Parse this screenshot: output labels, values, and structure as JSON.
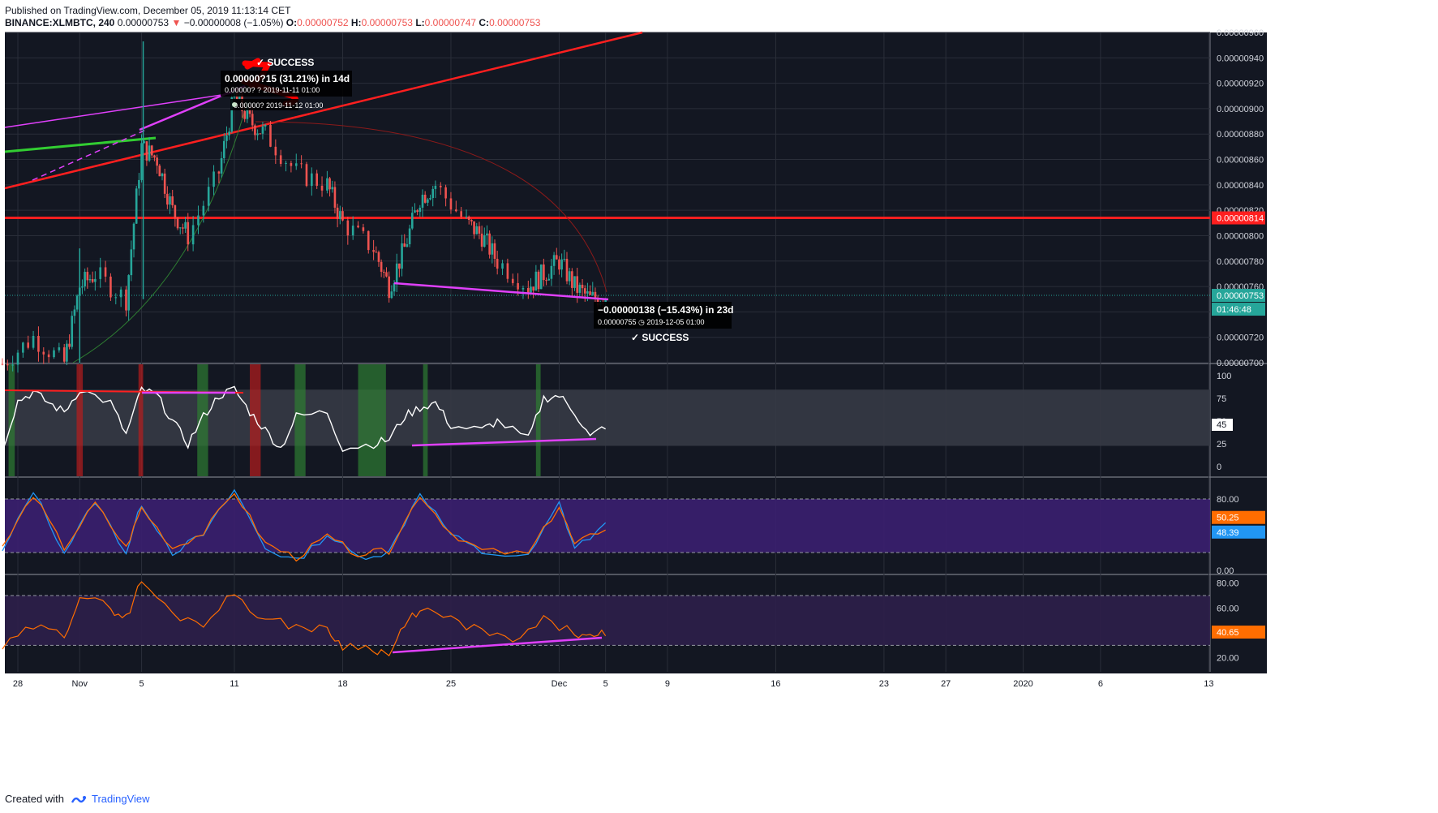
{
  "header": {
    "published": "Published on TradingView.com, December 05, 2019 11:13:14 CET"
  },
  "symbol": {
    "name": "BINANCE:XLMBTC, 240",
    "last": "0.00000753",
    "arrow": "▼",
    "change": "−0.00000008 (−1.05%)",
    "o_label": "O:",
    "o": "0.00000752",
    "h_label": "H:",
    "h": "0.00000753",
    "l_label": "L:",
    "l": "0.00000747",
    "c_label": "C:",
    "c": "0.00000753"
  },
  "footer": {
    "created": "Created with",
    "brand": "TradingView"
  },
  "colors": {
    "bg": "#131722",
    "grid": "#2a2e39",
    "up": "#26a69a",
    "down": "#ef5350",
    "resistance": "#ff1f1f",
    "magenta": "#e040fb",
    "green_line": "#32cd32",
    "rsi": "#ffffff",
    "stoch_k": "#2196f3",
    "stoch_d": "#ff6d00",
    "stoch_band": "#3b1f70",
    "osc": "#ff6d00",
    "osc_band": "#2d1f4a"
  },
  "chart_data": [
    {
      "type": "candlestick",
      "panel": "price",
      "ylim": [
        7e-06,
        9.6e-06
      ],
      "y_ticks": [
        "0.00000960",
        "0.00000940",
        "0.00000920",
        "0.00000900",
        "0.00000880",
        "0.00000860",
        "0.00000840",
        "0.00000820",
        "0.00000800",
        "0.00000780",
        "0.00000760",
        "0.00000740",
        "0.00000720",
        "0.00000700"
      ],
      "x_ticks": [
        "28",
        "Nov",
        "5",
        "11",
        "18",
        "25",
        "Dec",
        "5",
        "9",
        "16",
        "23",
        "27",
        "2020",
        "6",
        "13"
      ],
      "key_close": [
        [
          "2019-10-27",
          6.99e-06
        ],
        [
          "2019-10-29",
          7.2e-06
        ],
        [
          "2019-10-31",
          7e-06
        ],
        [
          "2019-11-01",
          7.6e-06
        ],
        [
          "2019-11-02",
          7.7e-06
        ],
        [
          "2019-11-04",
          7.5e-06
        ],
        [
          "2019-11-05",
          8.7e-06
        ],
        [
          "2019-11-06",
          8.6e-06
        ],
        [
          "2019-11-07",
          8.2e-06
        ],
        [
          "2019-11-08",
          8e-06
        ],
        [
          "2019-11-10",
          8.5e-06
        ],
        [
          "2019-11-11",
          9.1e-06
        ],
        [
          "2019-11-12",
          8.9e-06
        ],
        [
          "2019-11-13",
          8.8e-06
        ],
        [
          "2019-11-15",
          8.5e-06
        ],
        [
          "2019-11-17",
          8.4e-06
        ],
        [
          "2019-11-18",
          8.1e-06
        ],
        [
          "2019-11-20",
          7.9e-06
        ],
        [
          "2019-11-21",
          7.6e-06
        ],
        [
          "2019-11-22",
          7.9e-06
        ],
        [
          "2019-11-23",
          8.3e-06
        ],
        [
          "2019-11-24",
          8.4e-06
        ],
        [
          "2019-11-26",
          8.1e-06
        ],
        [
          "2019-11-27",
          8e-06
        ],
        [
          "2019-11-28",
          7.8e-06
        ],
        [
          "2019-11-30",
          7.6e-06
        ],
        [
          "2019-12-01",
          7.7e-06
        ],
        [
          "2019-12-02",
          7.8e-06
        ],
        [
          "2019-12-03",
          7.6e-06
        ],
        [
          "2019-12-04",
          7.5e-06
        ],
        [
          "2019-12-05",
          7.53e-06
        ]
      ],
      "last_price_label": "0.00000753",
      "countdown_label": "01:46:48",
      "resistance_label": "0.00000814",
      "resistance_level": 8.14e-06,
      "annotations": {
        "top_measure": "0.00000?15 (31.21%) in 14d",
        "top_measure_sub1": "0.00000? ? 2019-11-11 01:00",
        "top_measure_sub2": "0.00000? 2019-11-12 01:00",
        "top_success": "SUCCESS",
        "bottom_measure": "−0.00000138 (−15.43%) in 23d",
        "bottom_measure_sub": "0.00000755 ◷ 2019-12-05  01:00",
        "bottom_success": "SUCCESS",
        "check": "✓"
      }
    },
    {
      "type": "line",
      "panel": "rsi",
      "ylim": [
        0,
        100
      ],
      "y_ticks": [
        "100",
        "75",
        "50",
        "25",
        "0"
      ],
      "band": [
        25,
        80
      ],
      "last_label": "45",
      "series": [
        {
          "key_values": [
            [
              "2019-10-27",
              20
            ],
            [
              "2019-10-28",
              72
            ],
            [
              "2019-10-29",
              82
            ],
            [
              "2019-10-30",
              70
            ],
            [
              "2019-10-31",
              60
            ],
            [
              "2019-11-01",
              85
            ],
            [
              "2019-11-03",
              70
            ],
            [
              "2019-11-04",
              35
            ],
            [
              "2019-11-05",
              85
            ],
            [
              "2019-11-06",
              78
            ],
            [
              "2019-11-07",
              50
            ],
            [
              "2019-11-08",
              25
            ],
            [
              "2019-11-09",
              55
            ],
            [
              "2019-11-10",
              78
            ],
            [
              "2019-11-11",
              85
            ],
            [
              "2019-11-12",
              60
            ],
            [
              "2019-11-13",
              40
            ],
            [
              "2019-11-14",
              20
            ],
            [
              "2019-11-15",
              55
            ],
            [
              "2019-11-17",
              60
            ],
            [
              "2019-11-18",
              20
            ],
            [
              "2019-11-20",
              25
            ],
            [
              "2019-11-21",
              30
            ],
            [
              "2019-11-22",
              55
            ],
            [
              "2019-11-23",
              65
            ],
            [
              "2019-11-24",
              70
            ],
            [
              "2019-11-25",
              45
            ],
            [
              "2019-11-27",
              40
            ],
            [
              "2019-11-28",
              50
            ],
            [
              "2019-11-30",
              30
            ],
            [
              "2019-12-01",
              75
            ],
            [
              "2019-12-02",
              78
            ],
            [
              "2019-12-03",
              60
            ],
            [
              "2019-12-04",
              32
            ],
            [
              "2019-12-05",
              45
            ]
          ]
        }
      ]
    },
    {
      "type": "line",
      "panel": "stoch",
      "ylim": [
        0,
        100
      ],
      "y_ticks": [
        "80.00",
        "40.00",
        "0.00"
      ],
      "band": [
        20,
        80
      ],
      "k_label": "50.25",
      "d_label": "48.39",
      "series": [
        {
          "name": "%K",
          "key_values": [
            [
              "2019-10-27",
              20
            ],
            [
              "2019-10-29",
              90
            ],
            [
              "2019-10-31",
              20
            ],
            [
              "2019-11-02",
              78
            ],
            [
              "2019-11-04",
              20
            ],
            [
              "2019-11-05",
              75
            ],
            [
              "2019-11-07",
              20
            ],
            [
              "2019-11-09",
              40
            ],
            [
              "2019-11-11",
              90
            ],
            [
              "2019-11-13",
              25
            ],
            [
              "2019-11-15",
              10
            ],
            [
              "2019-11-17",
              40
            ],
            [
              "2019-11-19",
              15
            ],
            [
              "2019-11-21",
              20
            ],
            [
              "2019-11-23",
              88
            ],
            [
              "2019-11-25",
              40
            ],
            [
              "2019-11-27",
              20
            ],
            [
              "2019-11-30",
              15
            ],
            [
              "2019-12-02",
              75
            ],
            [
              "2019-12-03",
              25
            ],
            [
              "2019-12-05",
              50
            ]
          ]
        },
        {
          "name": "%D",
          "key_values": [
            [
              "2019-10-27",
              25
            ],
            [
              "2019-10-29",
              85
            ],
            [
              "2019-10-31",
              25
            ],
            [
              "2019-11-02",
              75
            ],
            [
              "2019-11-04",
              25
            ],
            [
              "2019-11-05",
              70
            ],
            [
              "2019-11-07",
              25
            ],
            [
              "2019-11-09",
              42
            ],
            [
              "2019-11-11",
              88
            ],
            [
              "2019-11-13",
              30
            ],
            [
              "2019-11-15",
              14
            ],
            [
              "2019-11-17",
              38
            ],
            [
              "2019-11-19",
              18
            ],
            [
              "2019-11-21",
              22
            ],
            [
              "2019-11-23",
              85
            ],
            [
              "2019-11-25",
              42
            ],
            [
              "2019-11-27",
              22
            ],
            [
              "2019-11-30",
              18
            ],
            [
              "2019-12-02",
              72
            ],
            [
              "2019-12-03",
              28
            ],
            [
              "2019-12-05",
              48
            ]
          ]
        }
      ]
    },
    {
      "type": "line",
      "panel": "oscillator",
      "ylim": [
        10,
        85
      ],
      "y_ticks": [
        "80.00",
        "60.00",
        "40.00",
        "20.00"
      ],
      "band": [
        30,
        70
      ],
      "last_label": "40.65",
      "series": [
        {
          "key_values": [
            [
              "2019-10-27",
              28
            ],
            [
              "2019-10-29",
              45
            ],
            [
              "2019-10-31",
              38
            ],
            [
              "2019-11-01",
              70
            ],
            [
              "2019-11-03",
              60
            ],
            [
              "2019-11-04",
              52
            ],
            [
              "2019-11-05",
              82
            ],
            [
              "2019-11-07",
              55
            ],
            [
              "2019-11-09",
              48
            ],
            [
              "2019-11-11",
              72
            ],
            [
              "2019-11-13",
              50
            ],
            [
              "2019-11-15",
              46
            ],
            [
              "2019-11-17",
              42
            ],
            [
              "2019-11-18",
              30
            ],
            [
              "2019-11-20",
              28
            ],
            [
              "2019-11-21",
              22
            ],
            [
              "2019-11-22",
              45
            ],
            [
              "2019-11-23",
              60
            ],
            [
              "2019-11-25",
              50
            ],
            [
              "2019-11-27",
              42
            ],
            [
              "2019-11-29",
              32
            ],
            [
              "2019-12-01",
              50
            ],
            [
              "2019-12-03",
              40
            ],
            [
              "2019-12-04",
              35
            ],
            [
              "2019-12-05",
              40
            ]
          ]
        }
      ]
    }
  ]
}
